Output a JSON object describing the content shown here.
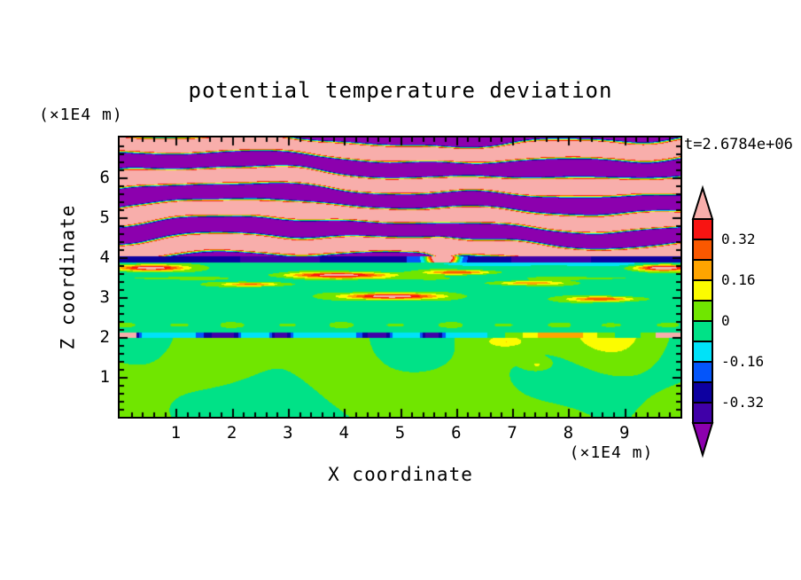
{
  "figure": {
    "title": "potential temperature deviation",
    "time_annotation": "t=2.6784e+06",
    "background_color": "#FFFFFF",
    "frame_color": "#000000",
    "x_axis": {
      "label": "X coordinate",
      "unit": "(×1E4 m)",
      "range": [
        0,
        10
      ],
      "major_ticks": [
        1,
        2,
        3,
        4,
        5,
        6,
        7,
        8,
        9
      ],
      "major_tick_labels": [
        "1",
        "2",
        "3",
        "4",
        "5",
        "6",
        "7",
        "8",
        "9"
      ],
      "minor_tick_step": 0.2
    },
    "y_axis": {
      "label": "Z coordinate",
      "unit": "(×1E4 m)",
      "range": [
        0,
        7
      ],
      "major_ticks": [
        1,
        2,
        3,
        4,
        5,
        6
      ],
      "major_tick_labels": [
        "1",
        "2",
        "3",
        "4",
        "5",
        "6"
      ],
      "minor_tick_step": 0.2
    }
  },
  "chart_data": {
    "type": "heatmap",
    "title": "potential temperature deviation",
    "xlabel": "X coordinate (×1E4 m)",
    "ylabel": "Z coordinate (×1E4 m)",
    "x_range": [
      0,
      10
    ],
    "z_range": [
      0,
      7
    ],
    "time_annotation": "t=2.6784e+06",
    "levels": [
      -0.4,
      -0.32,
      -0.24,
      -0.16,
      -0.08,
      0,
      0.08,
      0.16,
      0.24,
      0.32,
      0.4
    ],
    "colorbar": {
      "labels": [
        "0.32",
        "0.16",
        "0",
        "-0.16",
        "-0.32"
      ],
      "label_values": [
        0.32,
        0.16,
        0,
        -0.16,
        -0.32
      ],
      "arrow_ends": true
    },
    "palette": [
      {
        "name": "below -0.40",
        "hex": "#8C00AE"
      },
      {
        "name": "-0.40 to -0.32",
        "hex": "#4000A8"
      },
      {
        "name": "-0.32 to -0.24",
        "hex": "#0D00A0"
      },
      {
        "name": "-0.24 to -0.16",
        "hex": "#0455FA"
      },
      {
        "name": "-0.16 to -0.08",
        "hex": "#00E2F8"
      },
      {
        "name": "-0.08 to 0",
        "hex": "#00E287"
      },
      {
        "name": "0 to 0.08",
        "hex": "#70E600"
      },
      {
        "name": "0.08 to 0.16",
        "hex": "#FCFC00"
      },
      {
        "name": "0.16 to 0.24",
        "hex": "#FFA400"
      },
      {
        "name": "0.24 to 0.32",
        "hex": "#FA5800"
      },
      {
        "name": "0.32 to 0.40",
        "hex": "#F81412"
      },
      {
        "name": "above 0.40",
        "hex": "#F8AEAB"
      }
    ],
    "features": [
      "z=4 to 7: alternating wavy bands saturating beyond +0.4 (pink) and -0.4 (purple), thin rainbow fringes at band edges",
      "z≈3.9-4.0: dark blue/navy horizontal band across full width with warm red anomaly near x≈5.7",
      "z=2.1 to 3.85: near-zero green field with elongated warm (red/orange/pink) streaks around z≈3.0-3.75",
      "z≈2.0: thin cyan/blue shear line with dark blue dashes and warm patches near edges",
      "z=0 to 2: weakly positive (yellow-green) and weakly negative (green) interleaved blobs with small yellow spots"
    ]
  }
}
